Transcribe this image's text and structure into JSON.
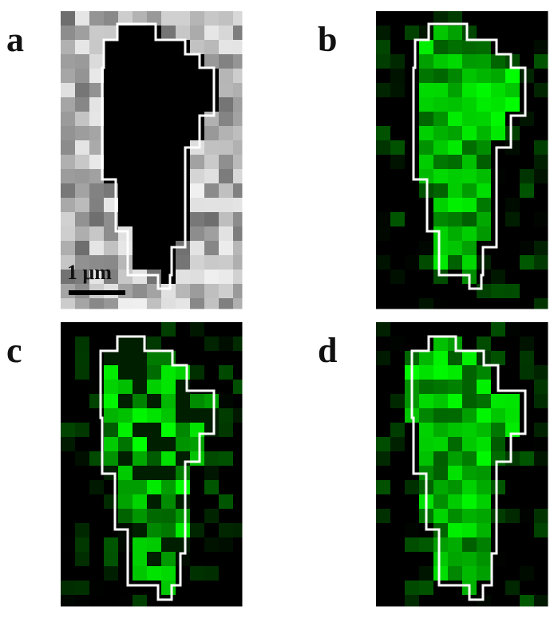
{
  "panels": [
    {
      "label": "a"
    },
    {
      "label": "b"
    },
    {
      "label": "c"
    },
    {
      "label": "d"
    }
  ],
  "scale_bar": "1 μm"
}
